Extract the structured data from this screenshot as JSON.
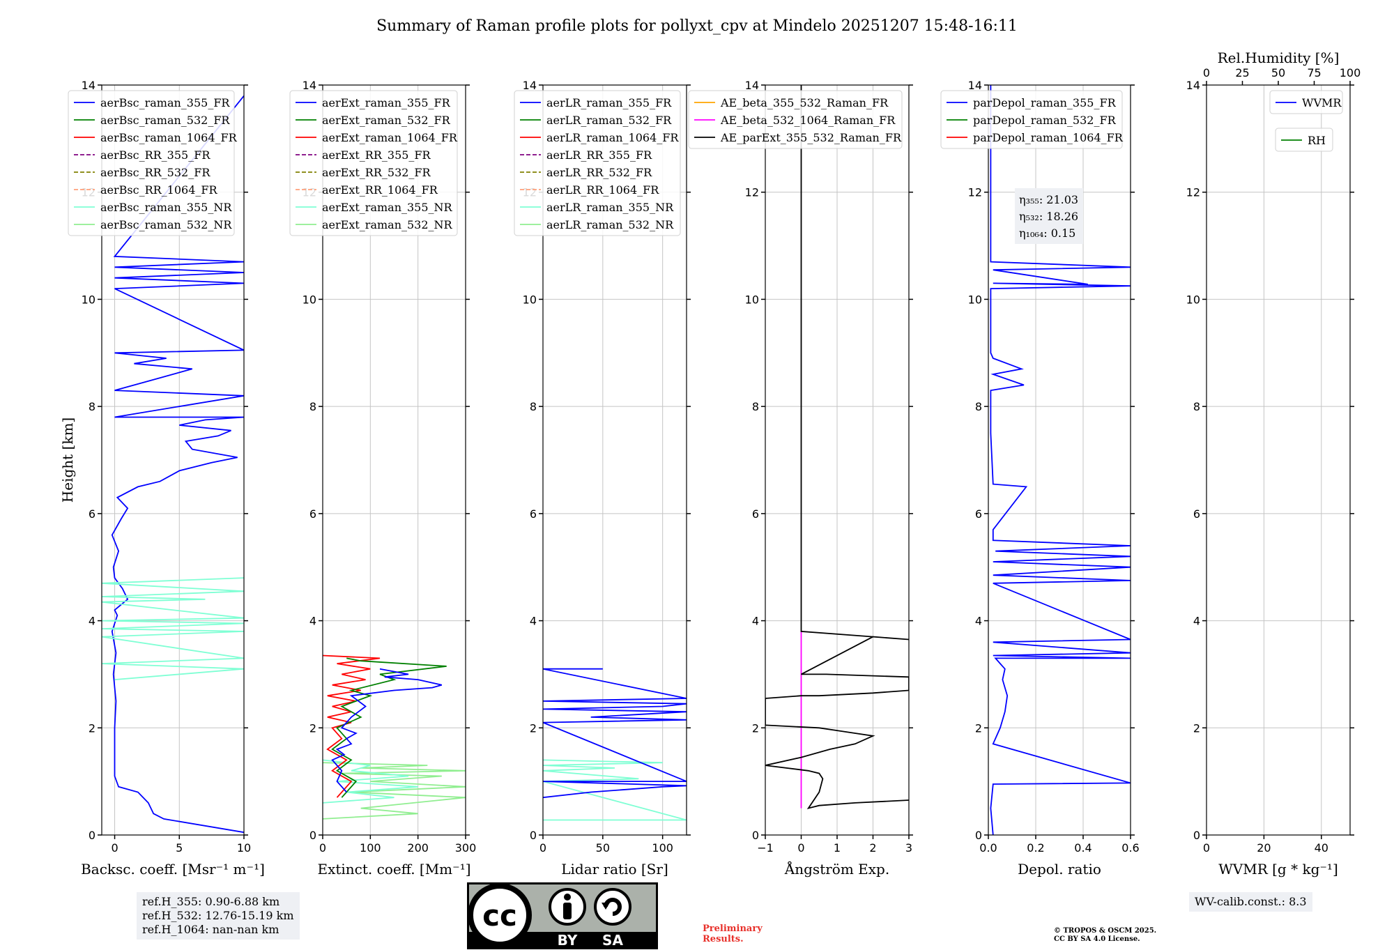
{
  "chart_data": {
    "type": "line",
    "title": "Summary of Raman profile plots for pollyxt_cpv at Mindelo 20251207 15:48-16:11",
    "ylabel": "Height [km]",
    "ylim": [
      0,
      14
    ],
    "yticks": [
      "0",
      "2",
      "4",
      "6",
      "8",
      "10",
      "12",
      "14"
    ],
    "panels": [
      {
        "id": "bsc",
        "xlabel": "Backsc. coeff. [Msr⁻¹ m⁻¹]",
        "xlim": [
          -1,
          10
        ],
        "xticks": [
          {
            "value": 0,
            "label": "0"
          },
          {
            "value": 5,
            "label": "5"
          },
          {
            "value": 10,
            "label": "10"
          }
        ],
        "legend": [
          {
            "label": "aerBsc_raman_355_FR",
            "color": "#0000ff",
            "dash": "solid"
          },
          {
            "label": "aerBsc_raman_532_FR",
            "color": "#008000",
            "dash": "solid"
          },
          {
            "label": "aerBsc_raman_1064_FR",
            "color": "#ff0000",
            "dash": "solid"
          },
          {
            "label": "aerBsc_RR_355_FR",
            "color": "#800080",
            "dash": "dashed"
          },
          {
            "label": "aerBsc_RR_532_FR",
            "color": "#808000",
            "dash": "dashed"
          },
          {
            "label": "aerBsc_RR_1064_FR",
            "color": "#ffa07a",
            "dash": "dashed"
          },
          {
            "label": "aerBsc_raman_355_NR",
            "color": "#7fffd4",
            "dash": "solid"
          },
          {
            "label": "aerBsc_raman_532_NR",
            "color": "#90ee90",
            "dash": "solid"
          }
        ],
        "series": [
          {
            "name": "aerBsc_raman_355_FR",
            "color": "#0000ff",
            "x": [
              10,
              3.8,
              3.0,
              2.6,
              1.8,
              0.3,
              0,
              0,
              0.1,
              -0.1,
              0.1,
              -0.2,
              0.2,
              0,
              0.5,
              1.0,
              0.6,
              0,
              -0.1,
              0.3,
              -0.2,
              0.5,
              1.0,
              0.2,
              1.8,
              3.5,
              5.0,
              7.5,
              9.5,
              6.0,
              5.5,
              8.0,
              9.0,
              5.0,
              7.0,
              10,
              0,
              10,
              0,
              3.0,
              6.0,
              1.5,
              4.0,
              0,
              10,
              0,
              10,
              0,
              10,
              0,
              10,
              0,
              10
            ],
            "y": [
              0.05,
              0.3,
              0.4,
              0.6,
              0.8,
              0.9,
              1.1,
              2.0,
              2.5,
              3.0,
              3.4,
              3.8,
              4.1,
              4.2,
              4.3,
              4.4,
              4.6,
              4.8,
              5.0,
              5.3,
              5.6,
              5.9,
              6.1,
              6.3,
              6.5,
              6.6,
              6.8,
              6.95,
              7.05,
              7.2,
              7.35,
              7.45,
              7.55,
              7.65,
              7.75,
              7.8,
              7.8,
              8.2,
              8.3,
              8.5,
              8.7,
              8.8,
              8.9,
              9.0,
              9.05,
              10.2,
              10.3,
              10.4,
              10.5,
              10.6,
              10.7,
              10.8,
              13.8
            ]
          },
          {
            "name": "aerBsc_raman_355_NR",
            "color": "#7fffd4",
            "x": [
              0,
              10,
              -1,
              10,
              -1,
              10,
              -1,
              10,
              -1,
              10,
              -1,
              7,
              -1,
              10,
              -1,
              10
            ],
            "y": [
              2.9,
              3.1,
              3.2,
              3.3,
              3.7,
              3.8,
              3.85,
              3.95,
              4.0,
              4.05,
              4.35,
              4.4,
              4.45,
              4.55,
              4.7,
              4.8
            ]
          }
        ]
      },
      {
        "id": "ext",
        "xlabel": "Extinct. coeff. [Mm⁻¹]",
        "xlim": [
          0,
          300
        ],
        "xticks": [
          {
            "value": 0,
            "label": "0"
          },
          {
            "value": 100,
            "label": "100"
          },
          {
            "value": 200,
            "label": "200"
          },
          {
            "value": 300,
            "label": "300"
          }
        ],
        "legend": [
          {
            "label": "aerExt_raman_355_FR",
            "color": "#0000ff",
            "dash": "solid"
          },
          {
            "label": "aerExt_raman_532_FR",
            "color": "#008000",
            "dash": "solid"
          },
          {
            "label": "aerExt_raman_1064_FR",
            "color": "#ff0000",
            "dash": "solid"
          },
          {
            "label": "aerExt_RR_355_FR",
            "color": "#800080",
            "dash": "dashed"
          },
          {
            "label": "aerExt_RR_532_FR",
            "color": "#808000",
            "dash": "dashed"
          },
          {
            "label": "aerExt_RR_1064_FR",
            "color": "#ffa07a",
            "dash": "dashed"
          },
          {
            "label": "aerExt_raman_355_NR",
            "color": "#7fffd4",
            "dash": "solid"
          },
          {
            "label": "aerExt_raman_532_NR",
            "color": "#90ee90",
            "dash": "solid"
          }
        ],
        "series": [
          {
            "name": "aerExt_raman_532_NR",
            "color": "#90ee90",
            "x": [
              0,
              200,
              80,
              300,
              60,
              300,
              100,
              250,
              40,
              300,
              80,
              220,
              0
            ],
            "y": [
              0.3,
              0.4,
              0.5,
              0.7,
              0.8,
              0.9,
              1.0,
              1.1,
              1.15,
              1.2,
              1.25,
              1.3,
              1.35
            ]
          },
          {
            "name": "aerExt_raman_355_NR",
            "color": "#7fffd4",
            "x": [
              0,
              150,
              50,
              200,
              30,
              180,
              60,
              100,
              0
            ],
            "y": [
              0.6,
              0.7,
              0.8,
              0.9,
              1.0,
              1.1,
              1.2,
              1.3,
              1.4
            ]
          },
          {
            "name": "aerExt_raman_1064_FR",
            "color": "#ff0000",
            "x": [
              30,
              60,
              20,
              50,
              10,
              40,
              20,
              60,
              10,
              60,
              20,
              70,
              10,
              80,
              20,
              90,
              40,
              100,
              30,
              120,
              0
            ],
            "y": [
              0.7,
              1.0,
              1.2,
              1.4,
              1.6,
              1.8,
              2.0,
              2.1,
              2.2,
              2.3,
              2.4,
              2.5,
              2.6,
              2.7,
              2.8,
              2.9,
              3.0,
              3.1,
              3.2,
              3.3,
              3.35
            ]
          },
          {
            "name": "aerExt_raman_532_FR",
            "color": "#008000",
            "x": [
              40,
              70,
              30,
              60,
              20,
              50,
              30,
              80,
              40,
              100,
              60,
              150,
              120,
              260,
              80,
              50
            ],
            "y": [
              0.7,
              1.0,
              1.2,
              1.4,
              1.6,
              1.8,
              2.0,
              2.2,
              2.4,
              2.6,
              2.7,
              2.9,
              3.0,
              3.15,
              3.25,
              3.3
            ]
          },
          {
            "name": "aerExt_raman_355_FR",
            "color": "#0000ff",
            "x": [
              50,
              30,
              40,
              20,
              45,
              30,
              60,
              50,
              70,
              40,
              60,
              90,
              60,
              150,
              230,
              250,
              200,
              130,
              180,
              120
            ],
            "y": [
              0.8,
              1.0,
              1.2,
              1.4,
              1.5,
              1.6,
              1.7,
              1.8,
              1.9,
              2.0,
              2.2,
              2.4,
              2.6,
              2.7,
              2.75,
              2.8,
              2.9,
              2.95,
              3.0,
              3.1
            ]
          }
        ]
      },
      {
        "id": "lr",
        "xlabel": "Lidar ratio [Sr]",
        "xlim": [
          0,
          120
        ],
        "xticks": [
          {
            "value": 0,
            "label": "0"
          },
          {
            "value": 50,
            "label": "50"
          },
          {
            "value": 100,
            "label": "100"
          }
        ],
        "legend": [
          {
            "label": "aerLR_raman_355_FR",
            "color": "#0000ff",
            "dash": "solid"
          },
          {
            "label": "aerLR_raman_532_FR",
            "color": "#008000",
            "dash": "solid"
          },
          {
            "label": "aerLR_raman_1064_FR",
            "color": "#ff0000",
            "dash": "solid"
          },
          {
            "label": "aerLR_RR_355_FR",
            "color": "#800080",
            "dash": "dashed"
          },
          {
            "label": "aerLR_RR_532_FR",
            "color": "#808000",
            "dash": "dashed"
          },
          {
            "label": "aerLR_RR_1064_FR",
            "color": "#ffa07a",
            "dash": "dashed"
          },
          {
            "label": "aerLR_raman_355_NR",
            "color": "#7fffd4",
            "dash": "solid"
          },
          {
            "label": "aerLR_raman_532_NR",
            "color": "#90ee90",
            "dash": "solid"
          }
        ],
        "series": [
          {
            "name": "aerLR_raman_355_NR",
            "color": "#7fffd4",
            "x": [
              0,
              120,
              0,
              80,
              0,
              60,
              0,
              100,
              0
            ],
            "y": [
              0.28,
              0.28,
              1.0,
              1.05,
              1.2,
              1.25,
              1.3,
              1.35,
              1.4
            ]
          },
          {
            "name": "aerLR_raman_355_FR",
            "color": "#0000ff",
            "x": [
              0,
              40,
              70,
              100,
              120,
              0,
              120,
              0,
              120,
              40,
              120,
              0,
              100,
              120,
              0,
              120,
              0,
              50
            ],
            "y": [
              0.7,
              0.8,
              0.85,
              0.9,
              0.92,
              1.0,
              1.0,
              2.1,
              2.15,
              2.2,
              2.3,
              2.35,
              2.4,
              2.45,
              2.5,
              2.55,
              3.1,
              3.1
            ]
          }
        ]
      },
      {
        "id": "ae",
        "xlabel": "Ångström Exp.",
        "xlim": [
          -1,
          3
        ],
        "xticks": [
          {
            "value": -1,
            "label": "−1"
          },
          {
            "value": 0,
            "label": "0"
          },
          {
            "value": 1,
            "label": "1"
          },
          {
            "value": 2,
            "label": "2"
          },
          {
            "value": 3,
            "label": "3"
          }
        ],
        "legend": [
          {
            "label": "AE_beta_355_532_Raman_FR",
            "color": "#ffa500",
            "dash": "solid"
          },
          {
            "label": "AE_beta_532_1064_Raman_FR",
            "color": "#ff00ff",
            "dash": "solid"
          },
          {
            "label": "AE_parExt_355_532_Raman_FR",
            "color": "#000000",
            "dash": "solid"
          }
        ],
        "series": [
          {
            "name": "AE_beta_532_1064_Raman_FR",
            "color": "#ff00ff",
            "x": [
              0,
              0
            ],
            "y": [
              0.5,
              3.8
            ]
          },
          {
            "name": "AE_parExt_355_532_Raman_FR",
            "color": "#000000",
            "x": [
              3,
              1.5,
              0.5,
              0.2,
              0.5,
              0.6,
              0.5,
              0.2,
              -1,
              0,
              0.8,
              1.5,
              2.0,
              1.5,
              1.0,
              0.5,
              -1,
              -1,
              0,
              0.5,
              2,
              3,
              3,
              0.7,
              0,
              2,
              3,
              0,
              0
            ],
            "y": [
              0.65,
              0.6,
              0.55,
              0.5,
              0.8,
              1.05,
              1.15,
              1.2,
              1.3,
              1.45,
              1.6,
              1.7,
              1.85,
              1.9,
              1.95,
              2.0,
              2.05,
              2.55,
              2.6,
              2.6,
              2.65,
              2.7,
              2.95,
              3.0,
              3.0,
              3.7,
              3.65,
              3.8,
              14
            ]
          }
        ]
      },
      {
        "id": "depol",
        "xlabel": "Depol. ratio",
        "xlim": [
          0,
          0.6
        ],
        "xticks": [
          {
            "value": 0,
            "label": "0.0"
          },
          {
            "value": 0.2,
            "label": "0.2"
          },
          {
            "value": 0.4,
            "label": "0.4"
          },
          {
            "value": 0.6,
            "label": "0.6"
          }
        ],
        "legend": [
          {
            "label": "parDepol_raman_355_FR",
            "color": "#0000ff",
            "dash": "solid"
          },
          {
            "label": "parDepol_raman_532_FR",
            "color": "#008000",
            "dash": "solid"
          },
          {
            "label": "parDepol_raman_1064_FR",
            "color": "#ff0000",
            "dash": "solid"
          }
        ],
        "annotation": {
          "lines": [
            "η₃₅₅: 21.03",
            "η₅₃₂: 18.26",
            "η₁₀₆₄: 0.15"
          ]
        },
        "series": [
          {
            "name": "parDepol_raman_355_FR",
            "color": "#0000ff",
            "x": [
              0.02,
              0.01,
              0.02,
              0.6,
              0.02,
              0.05,
              0.07,
              0.08,
              0.06,
              0.07,
              0.05,
              0.03,
              0.6,
              0.02,
              0.6,
              0.02,
              0.6,
              0.02,
              0.6,
              0.02,
              0.6,
              0.02,
              0.6,
              0.03,
              0.6,
              0.02,
              0.02,
              0.16,
              0.02,
              0.01,
              0.01,
              0.15,
              0.02,
              0.14,
              0.02,
              0.01,
              0.01,
              0.6,
              0.02,
              0.42,
              0.02,
              0.6,
              0.01,
              0.01
            ],
            "y": [
              0,
              0.5,
              0.95,
              0.97,
              1.7,
              2.0,
              2.3,
              2.6,
              2.9,
              3.1,
              3.2,
              3.3,
              3.3,
              3.35,
              3.4,
              3.6,
              3.65,
              4.7,
              4.75,
              4.85,
              5.0,
              5.1,
              5.2,
              5.3,
              5.4,
              5.5,
              5.7,
              6.5,
              6.55,
              7.5,
              8.3,
              8.4,
              8.6,
              8.7,
              8.9,
              9.0,
              10.2,
              10.25,
              10.3,
              10.28,
              10.55,
              10.6,
              10.7,
              14
            ]
          }
        ]
      },
      {
        "id": "wv",
        "xlabel": "WVMR [g * kg⁻¹]",
        "xlim": [
          0,
          50
        ],
        "xticks": [
          {
            "value": 0,
            "label": "0"
          },
          {
            "value": 20,
            "label": "20"
          },
          {
            "value": 40,
            "label": "40"
          }
        ],
        "top_axis_label": "Rel.Humidity [%]",
        "top_xlim": [
          0,
          100
        ],
        "top_xticks": [
          {
            "value": 0,
            "label": "0"
          },
          {
            "value": 25,
            "label": "25"
          },
          {
            "value": 50,
            "label": "50"
          },
          {
            "value": 75,
            "label": "75"
          },
          {
            "value": 100,
            "label": "100"
          }
        ],
        "legend": [
          {
            "label": "WVMR",
            "color": "#0000ff",
            "dash": "solid"
          }
        ],
        "legend2": [
          {
            "label": "RH",
            "color": "#008000",
            "dash": "solid"
          }
        ],
        "series": []
      }
    ]
  },
  "footer": {
    "ref_lines": [
      "ref.H_355: 0.90-6.88 km",
      "ref.H_532: 12.76-15.19 km",
      "ref.H_1064: nan-nan km"
    ],
    "preliminary": [
      "Preliminary",
      "Results."
    ],
    "copyright": [
      "© TROPOS & OSCM 2025.",
      "CC BY SA 4.0 License."
    ],
    "wv_calib": "WV-calib.const.: 8.3",
    "license_badge": {
      "by": "BY",
      "sa": "SA",
      "cc": "cc"
    }
  }
}
